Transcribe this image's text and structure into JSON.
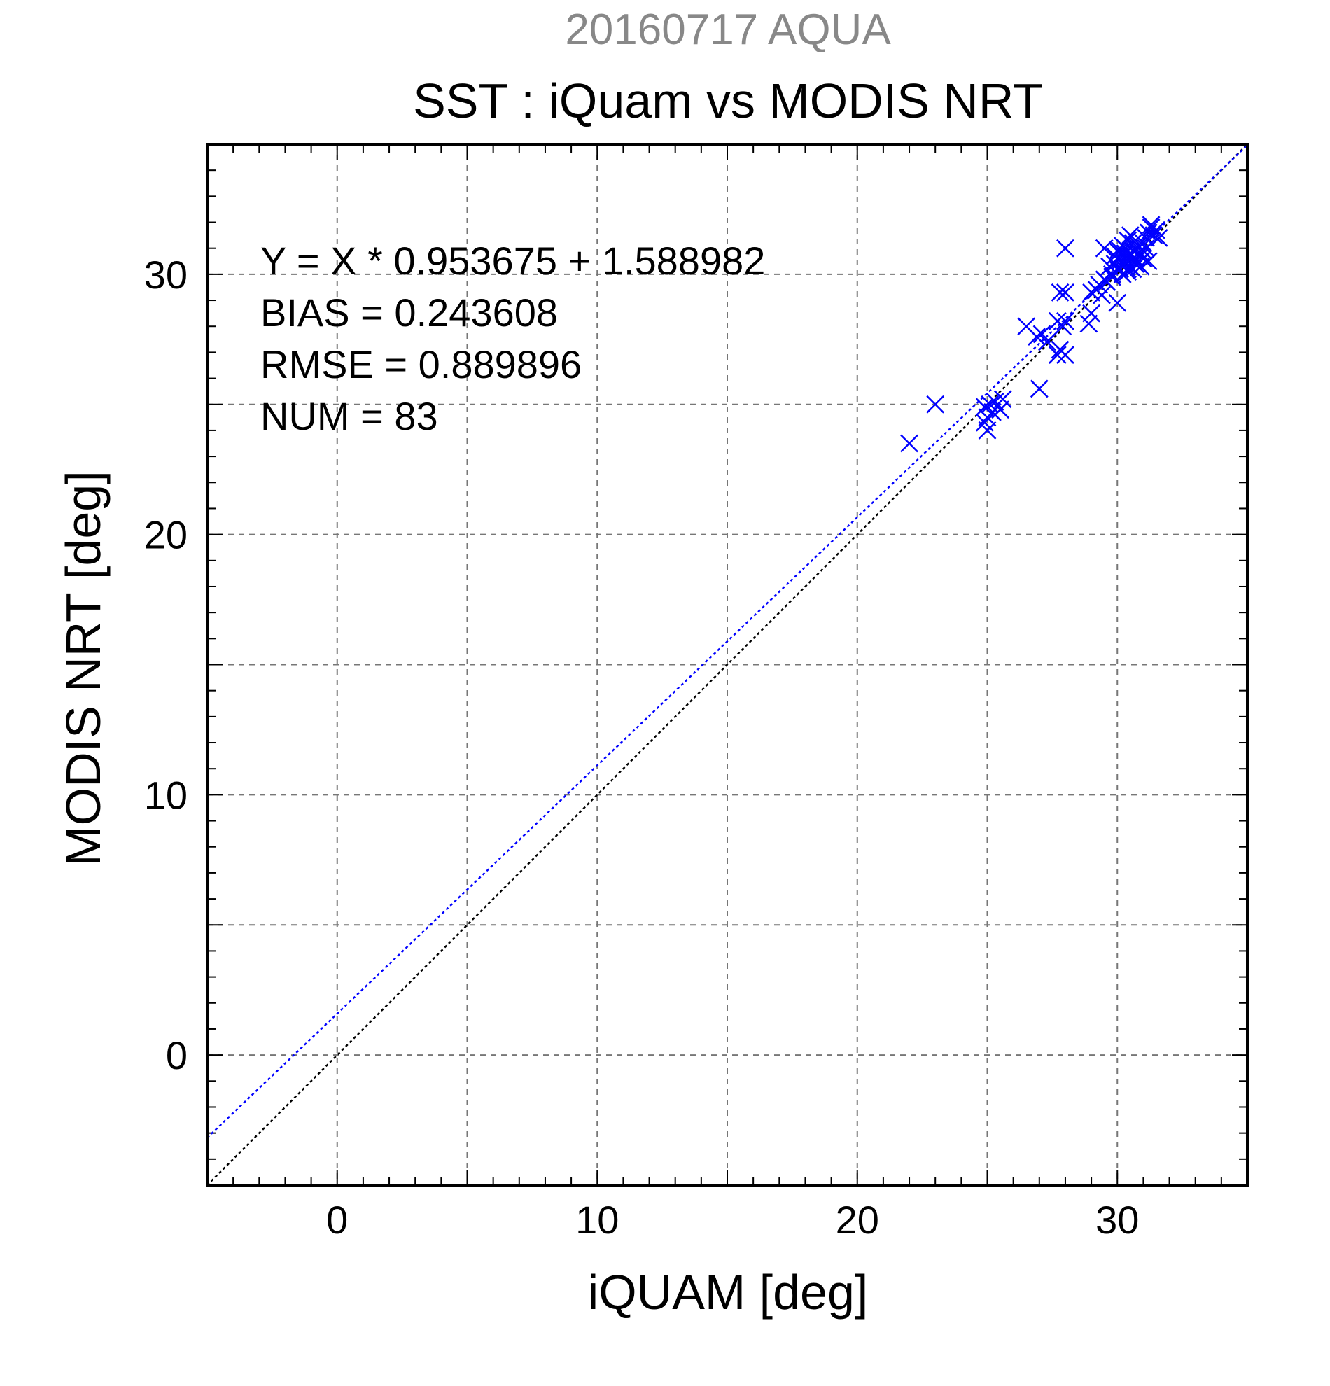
{
  "figure": {
    "title_top": "20160717 AQUA",
    "title_main": "SST : iQuam vs MODIS NRT",
    "title_top_color": "#888888"
  },
  "stats": {
    "line1": "Y = X * 0.953675 + 1.588982",
    "line2": "BIAS = 0.243608",
    "line3": "RMSE = 0.889896",
    "line4": "NUM = 83"
  },
  "chart_data": {
    "type": "scatter",
    "xlabel": "iQUAM [deg]",
    "ylabel": "MODIS NRT [deg]",
    "xlim": [
      -5,
      35
    ],
    "ylim": [
      -5,
      35
    ],
    "xticks": [
      0,
      10,
      20,
      30
    ],
    "yticks": [
      0,
      10,
      20,
      30
    ],
    "grid_step": 5,
    "grid": true,
    "marker": "x",
    "marker_color": "#0000ff",
    "fit_line": {
      "slope": 0.953675,
      "intercept": 1.588982,
      "color": "#0000ff"
    },
    "identity_line": {
      "slope": 1,
      "intercept": 0,
      "color": "#000000"
    },
    "points": [
      [
        22.0,
        23.5
      ],
      [
        23.0,
        25.0
      ],
      [
        24.9,
        24.9
      ],
      [
        25.0,
        24.5
      ],
      [
        25.0,
        24.0
      ],
      [
        25.2,
        24.7
      ],
      [
        25.3,
        25.1
      ],
      [
        25.5,
        24.8
      ],
      [
        25.6,
        25.2
      ],
      [
        25.1,
        25.0
      ],
      [
        24.9,
        24.3
      ],
      [
        26.5,
        28.0
      ],
      [
        26.9,
        27.6
      ],
      [
        27.1,
        27.7
      ],
      [
        27.0,
        25.6
      ],
      [
        27.3,
        27.4
      ],
      [
        27.7,
        28.2
      ],
      [
        27.8,
        29.3
      ],
      [
        27.9,
        28.0
      ],
      [
        28.0,
        28.2
      ],
      [
        28.0,
        29.3
      ],
      [
        28.0,
        31.0
      ],
      [
        27.7,
        26.9
      ],
      [
        27.8,
        27.1
      ],
      [
        28.0,
        26.9
      ],
      [
        28.9,
        28.1
      ],
      [
        29.0,
        28.5
      ],
      [
        29.0,
        29.3
      ],
      [
        29.2,
        29.4
      ],
      [
        29.3,
        29.6
      ],
      [
        29.4,
        29.2
      ],
      [
        29.5,
        29.8
      ],
      [
        29.6,
        29.7
      ],
      [
        29.5,
        31.0
      ],
      [
        29.8,
        30.0
      ],
      [
        29.9,
        30.4
      ],
      [
        30.0,
        30.6
      ],
      [
        30.0,
        30.9
      ],
      [
        30.0,
        28.9
      ],
      [
        30.1,
        30.2
      ],
      [
        30.1,
        30.5
      ],
      [
        30.2,
        30.8
      ],
      [
        30.2,
        31.1
      ],
      [
        30.3,
        30.4
      ],
      [
        30.3,
        30.6
      ],
      [
        30.3,
        31.0
      ],
      [
        30.4,
        30.2
      ],
      [
        30.4,
        31.3
      ],
      [
        30.5,
        30.7
      ],
      [
        30.5,
        30.3
      ],
      [
        30.6,
        30.9
      ],
      [
        30.6,
        30.5
      ],
      [
        30.7,
        30.6
      ],
      [
        30.7,
        31.0
      ],
      [
        30.8,
        30.8
      ],
      [
        30.8,
        30.4
      ],
      [
        30.9,
        30.7
      ],
      [
        31.0,
        30.9
      ],
      [
        31.0,
        31.2
      ],
      [
        31.1,
        31.4
      ],
      [
        31.2,
        31.6
      ],
      [
        31.2,
        30.5
      ],
      [
        31.3,
        31.8
      ],
      [
        31.4,
        31.5
      ],
      [
        31.5,
        31.7
      ],
      [
        31.6,
        31.4
      ],
      [
        31.0,
        30.6
      ],
      [
        30.2,
        30.0
      ],
      [
        30.4,
        30.1
      ],
      [
        30.6,
        30.2
      ],
      [
        29.9,
        30.7
      ],
      [
        30.1,
        30.9
      ],
      [
        30.8,
        31.1
      ],
      [
        31.3,
        31.9
      ],
      [
        30.5,
        31.5
      ],
      [
        30.9,
        30.3
      ],
      [
        29.7,
        30.3
      ],
      [
        30.0,
        30.2
      ],
      [
        30.3,
        30.8
      ],
      [
        31.1,
        31.0
      ],
      [
        30.6,
        31.2
      ],
      [
        29.8,
        29.9
      ],
      [
        30.7,
        30.4
      ]
    ]
  }
}
